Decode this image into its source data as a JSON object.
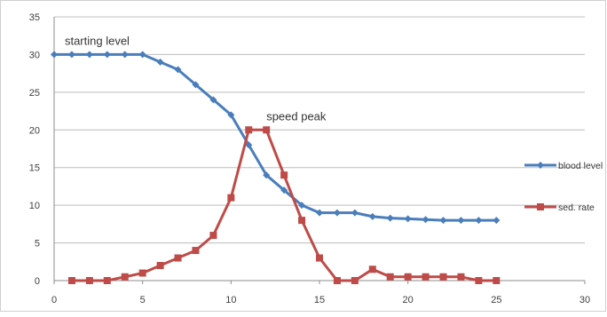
{
  "chart_data": {
    "type": "line",
    "xlim": [
      0,
      30
    ],
    "ylim": [
      0,
      35
    ],
    "x_ticks": [
      "0",
      "5",
      "10",
      "15",
      "20",
      "25",
      "30"
    ],
    "y_ticks": [
      "0",
      "5",
      "10",
      "15",
      "20",
      "25",
      "30",
      "35"
    ],
    "grid": "horizontal",
    "legend_position": "right",
    "series": [
      {
        "name": "blood level",
        "color": "#4a7ebb",
        "marker": "diamond",
        "x": [
          0,
          1,
          2,
          3,
          4,
          5,
          6,
          7,
          8,
          9,
          10,
          11,
          12,
          13,
          14,
          15,
          16,
          17,
          18,
          19,
          20,
          21,
          22,
          23,
          24,
          25
        ],
        "y": [
          30,
          30,
          30,
          30,
          30,
          30,
          29,
          28,
          26,
          24,
          22,
          18,
          14,
          12,
          10,
          9,
          9,
          9,
          8.5,
          8.3,
          8.2,
          8.1,
          8,
          8,
          8,
          8
        ]
      },
      {
        "name": "sed. rate",
        "color": "#be4b48",
        "marker": "square",
        "x": [
          1,
          2,
          3,
          4,
          5,
          6,
          7,
          8,
          9,
          10,
          11,
          12,
          13,
          14,
          15,
          16,
          17,
          18,
          19,
          20,
          21,
          22,
          23,
          24,
          25
        ],
        "y": [
          0,
          0,
          0,
          0.5,
          1,
          2,
          3,
          4,
          6,
          11,
          20,
          20,
          14,
          8,
          3,
          0,
          0,
          1.5,
          0.5,
          0.5,
          0.5,
          0.5,
          0.5,
          0,
          0
        ]
      }
    ],
    "annotations": [
      {
        "text": "starting level",
        "x": 0.6,
        "y": 31.3
      },
      {
        "text": "speed peak",
        "x": 12,
        "y": 21.3
      }
    ]
  }
}
